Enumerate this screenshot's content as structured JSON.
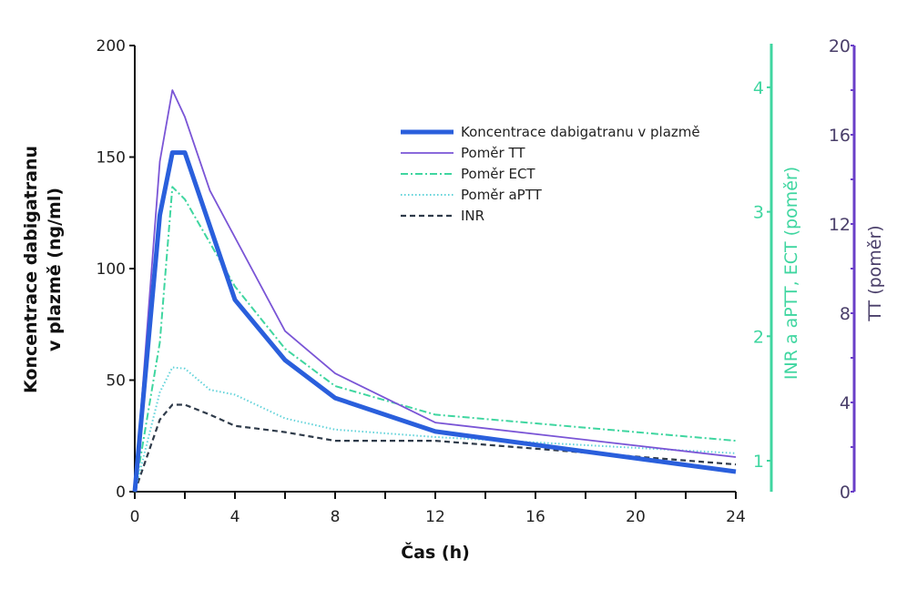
{
  "chart_data": {
    "type": "line",
    "title": "",
    "xlabel": "Čas (h)",
    "ylabel_line1": "Koncentrace dabigatranu",
    "ylabel_line2": "v plazmě (ng/ml)",
    "xlim": [
      0,
      24
    ],
    "xticks": [
      0,
      4,
      8,
      12,
      16,
      20,
      24
    ],
    "xminor_step": 2,
    "axes": {
      "left": {
        "label": "Koncentrace dabigatranu v plazmě (ng/ml)",
        "ylim": [
          0,
          200
        ],
        "ticks": [
          0,
          50,
          100,
          150,
          200
        ],
        "color": "#111111"
      },
      "right_green": {
        "label": "INR a aPTT, ECT (poměr)",
        "ylim": [
          0.75,
          4.35
        ],
        "ticks": [
          1,
          2,
          3,
          4
        ],
        "color": "#3fd6a0"
      },
      "right_purple": {
        "label": "TT (poměr)",
        "ylim": [
          0,
          20
        ],
        "ticks": [
          0,
          4,
          8,
          12,
          16,
          20
        ],
        "minor_step": 2,
        "color": "#6a3fc8"
      }
    },
    "legend_position": "top-right",
    "series": [
      {
        "name": "Koncentrace dabigatranu v plazmě",
        "axis": "left",
        "color": "#2a5fdc",
        "style": "solid-thick",
        "x": [
          0,
          1,
          1.5,
          2,
          4,
          6,
          8,
          12,
          24
        ],
        "y": [
          0,
          124,
          152,
          152,
          86,
          59,
          42,
          27,
          9
        ]
      },
      {
        "name": "Poměr TT",
        "axis": "right_purple",
        "color": "#7a55d6",
        "style": "solid",
        "x": [
          0,
          1,
          1.5,
          2,
          3,
          6,
          8,
          12,
          24
        ],
        "y": [
          0,
          14.8,
          18,
          16.8,
          13.5,
          7.2,
          5.3,
          3.1,
          1.55
        ]
      },
      {
        "name": "Poměr ECT",
        "axis": "right_green",
        "color": "#3fd6a0",
        "style": "dashdot",
        "x": [
          0,
          1,
          1.5,
          2,
          4,
          6,
          8,
          12,
          24
        ],
        "y": [
          0.75,
          1.95,
          3.2,
          3.1,
          2.4,
          1.9,
          1.6,
          1.37,
          1.16
        ]
      },
      {
        "name": "Poměr aPTT",
        "axis": "right_green",
        "color": "#62d3da",
        "style": "dotted",
        "x": [
          0,
          1,
          1.5,
          2,
          3,
          4,
          6,
          8,
          12,
          24
        ],
        "y": [
          0.75,
          1.55,
          1.75,
          1.74,
          1.57,
          1.53,
          1.34,
          1.25,
          1.19,
          1.06
        ]
      },
      {
        "name": "INR",
        "axis": "right_green",
        "color": "#2f3b4a",
        "style": "dashed",
        "x": [
          0,
          1,
          1.5,
          2,
          3,
          4,
          6,
          8,
          12,
          24
        ],
        "y": [
          0.75,
          1.33,
          1.45,
          1.45,
          1.37,
          1.28,
          1.23,
          1.16,
          1.16,
          0.97
        ]
      }
    ]
  }
}
